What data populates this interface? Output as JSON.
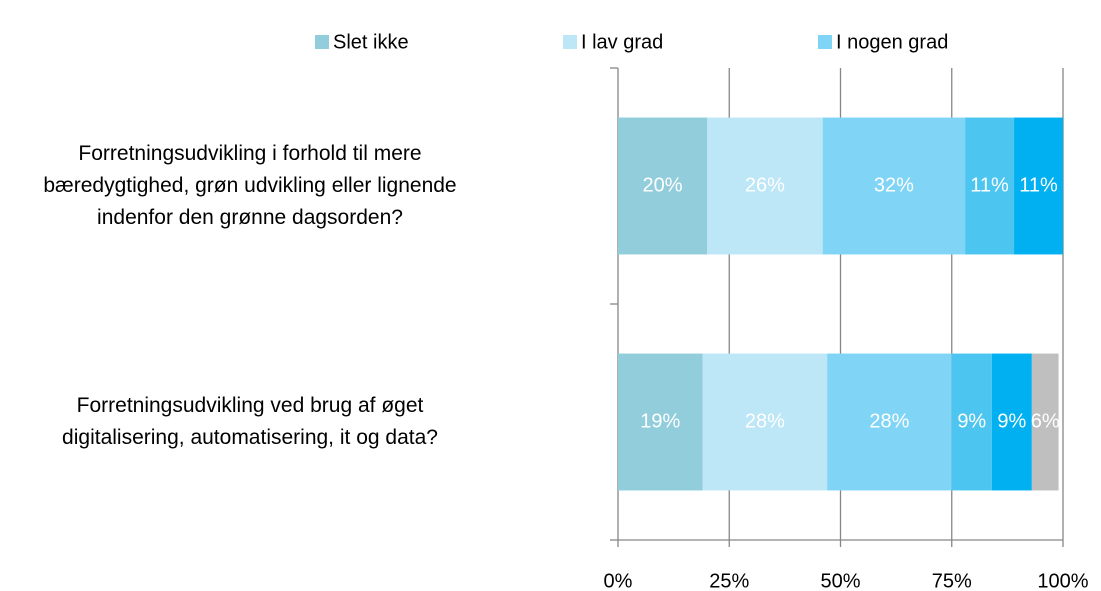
{
  "chart_data": {
    "type": "stacked_bar_horizontal",
    "categories": [
      "Forretningsudvikling i forhold til mere bæredygtighed, grøn udvikling eller lignende indenfor den grønne dagsorden?",
      "Forretningsudvikling ved brug af øget digitalisering, automatisering, it og data?"
    ],
    "series": [
      {
        "name": "Slet ikke",
        "color": "#92cddc",
        "values": [
          20,
          19
        ],
        "value_labels": [
          "20%",
          "19%"
        ]
      },
      {
        "name": "I lav grad",
        "color": "#bde6f6",
        "values": [
          26,
          28
        ],
        "value_labels": [
          "26%",
          "28%"
        ]
      },
      {
        "name": "I nogen grad",
        "color": "#80d4f6",
        "values": [
          32,
          28
        ],
        "value_labels": [
          "32%",
          "28%"
        ]
      },
      {
        "color": "#4cc6f0",
        "values": [
          11,
          9
        ],
        "value_labels": [
          "11%",
          "9%"
        ]
      },
      {
        "color": "#00b0f0",
        "values": [
          11,
          9
        ],
        "value_labels": [
          "11%",
          "9%"
        ]
      },
      {
        "color": "#bfbfbf",
        "values": [
          null,
          6
        ],
        "value_labels": [
          null,
          "6%"
        ]
      }
    ],
    "xlim": [
      0,
      100
    ],
    "xticks": [
      {
        "value": 0,
        "label": "0%"
      },
      {
        "value": 25,
        "label": "25%"
      },
      {
        "value": 50,
        "label": "50%"
      },
      {
        "value": 75,
        "label": "75%"
      },
      {
        "value": 100,
        "label": "100%"
      }
    ],
    "grid": true
  }
}
